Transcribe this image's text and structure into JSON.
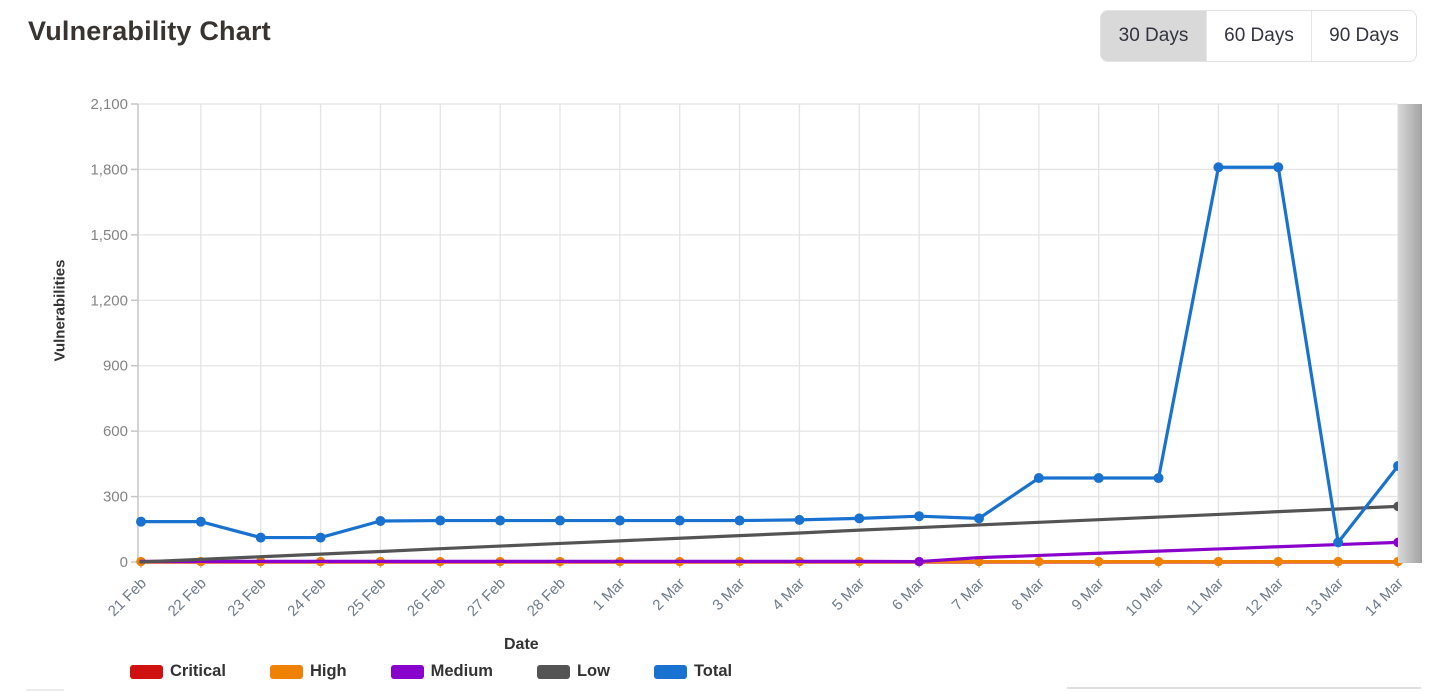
{
  "header": {
    "title": "Vulnerability Chart",
    "range_buttons": [
      {
        "label": "30 Days",
        "selected": true
      },
      {
        "label": "60 Days",
        "selected": false
      },
      {
        "label": "90 Days",
        "selected": false
      }
    ]
  },
  "chart_data": {
    "type": "line",
    "xlabel": "Date",
    "ylabel": "Vulnerabilities",
    "ylim": [
      0,
      2100
    ],
    "grid": true,
    "legend_position": "bottom",
    "x": [
      "21 Feb",
      "22 Feb",
      "23 Feb",
      "24 Feb",
      "25 Feb",
      "26 Feb",
      "27 Feb",
      "28 Feb",
      "1 Mar",
      "2 Mar",
      "3 Mar",
      "4 Mar",
      "5 Mar",
      "6 Mar",
      "7 Mar",
      "8 Mar",
      "9 Mar",
      "10 Mar",
      "11 Mar",
      "12 Mar",
      "13 Mar",
      "14 Mar"
    ],
    "y_ticks": [
      0,
      300,
      600,
      900,
      1200,
      1500,
      1800,
      2100
    ],
    "y_tick_labels": [
      "0",
      "300",
      "600",
      "900",
      "1,200",
      "1,500",
      "1,800",
      "2,100"
    ],
    "series": [
      {
        "name": "Critical",
        "color": "#cf1110",
        "markers": "none",
        "values": [
          0,
          0,
          0,
          0,
          0,
          0,
          0,
          0,
          0,
          0,
          0,
          0,
          0,
          0,
          0,
          0,
          0,
          0,
          0,
          0,
          0,
          0
        ]
      },
      {
        "name": "High",
        "color": "#ef8104",
        "markers": "all",
        "values": [
          2,
          2,
          2,
          2,
          2,
          2,
          2,
          2,
          2,
          2,
          2,
          2,
          2,
          2,
          2,
          2,
          2,
          2,
          2,
          2,
          2,
          2
        ]
      },
      {
        "name": "Medium",
        "color": "#8902cc",
        "markers": [
          13,
          21
        ],
        "values": [
          3,
          3,
          3,
          3,
          3,
          3,
          3,
          3,
          3,
          3,
          3,
          3,
          3,
          2,
          20,
          30,
          40,
          50,
          60,
          70,
          80,
          90
        ]
      },
      {
        "name": "Low",
        "color": "#545454",
        "markers": [
          21
        ],
        "values": [
          0,
          12,
          24,
          36,
          48,
          61,
          73,
          85,
          97,
          109,
          121,
          133,
          146,
          158,
          170,
          182,
          194,
          206,
          218,
          231,
          243,
          255
        ]
      },
      {
        "name": "Total",
        "color": "#1a72d0",
        "markers": "all",
        "values": [
          185,
          185,
          112,
          112,
          188,
          190,
          190,
          190,
          190,
          190,
          190,
          193,
          200,
          210,
          200,
          385,
          385,
          385,
          1810,
          1810,
          90,
          440
        ]
      }
    ],
    "colors": {
      "grid": "#e4e4e4",
      "axis": "#c6c6c6",
      "y_tick_text": "#848484",
      "x_tick_text": "#6e7b8a",
      "fade_strip_light": "#d8d8d8",
      "fade_strip_dark": "#a2a2a2"
    }
  }
}
